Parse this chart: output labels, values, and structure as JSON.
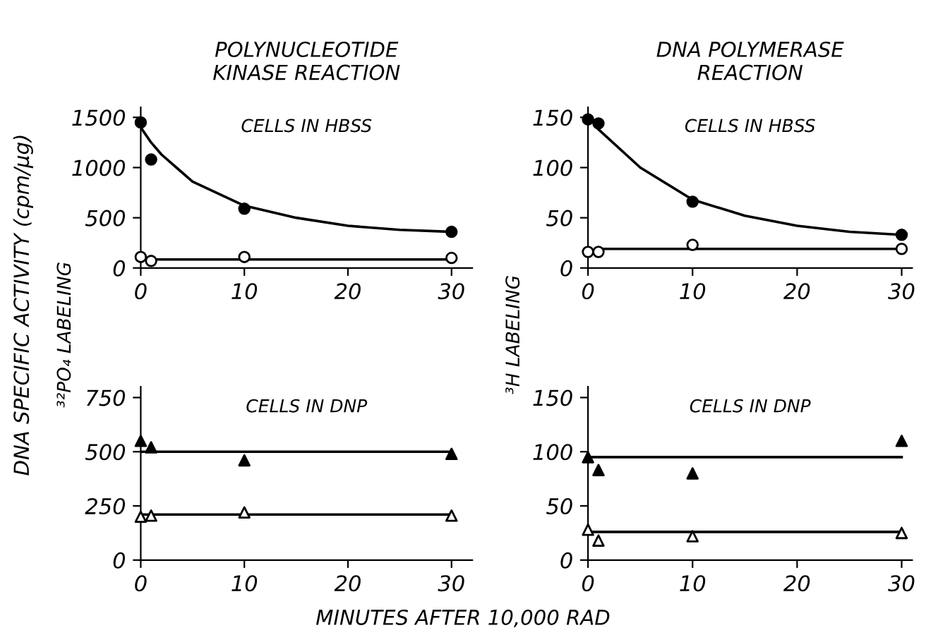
{
  "chart_data": [
    {
      "type": "scatter",
      "title": "POLYNUCLEOTIDE\nKINASE REACTION",
      "subtitle": "CELLS IN HBSS",
      "ylabel": "DNA SPECIFIC ACTIVITY (cpm/μg)",
      "x": [
        0,
        1,
        10,
        30
      ],
      "xlim": [
        0,
        32
      ],
      "xticks": [
        0,
        10,
        20,
        30
      ],
      "ylim": [
        0,
        1600
      ],
      "yticks": [
        0,
        500,
        1000,
        1500
      ],
      "grid": false,
      "legend": false,
      "series": [
        {
          "color": "#000000",
          "marker": "circle",
          "values": [
            1450,
            1080,
            590,
            360
          ]
        },
        {
          "color": "#ffffff",
          "marker": "circle",
          "values": [
            110,
            70,
            110,
            100
          ]
        },
        {
          "type": "line",
          "color": "#000000",
          "x": [
            0,
            1,
            2,
            5,
            10,
            15,
            20,
            25,
            30
          ],
          "values": [
            1400,
            1250,
            1130,
            860,
            620,
            500,
            420,
            380,
            360
          ]
        },
        {
          "type": "line",
          "color": "#000000",
          "x": [
            0,
            30
          ],
          "values": [
            85,
            85
          ]
        }
      ]
    },
    {
      "type": "scatter",
      "title": "DNA POLYMERASE\nREACTION",
      "subtitle": "CELLS IN HBSS",
      "x": [
        0,
        1,
        10,
        30
      ],
      "xlim": [
        0,
        31
      ],
      "xticks": [
        0,
        10,
        20,
        30
      ],
      "ylim": [
        0,
        160
      ],
      "yticks": [
        0,
        50,
        100,
        150
      ],
      "grid": false,
      "legend": false,
      "series": [
        {
          "color": "#000000",
          "marker": "circle",
          "values": [
            148,
            144,
            66,
            33
          ]
        },
        {
          "color": "#ffffff",
          "marker": "circle",
          "values": [
            16,
            16,
            23,
            19
          ]
        },
        {
          "type": "line",
          "color": "#000000",
          "x": [
            1,
            5,
            10,
            15,
            20,
            25,
            30
          ],
          "values": [
            138,
            100,
            68,
            52,
            42,
            36,
            33
          ]
        },
        {
          "type": "line",
          "color": "#000000",
          "x": [
            1,
            30
          ],
          "values": [
            19,
            19
          ]
        }
      ]
    },
    {
      "type": "scatter",
      "subtitle": "CELLS IN DNP",
      "ylabel": "³²PO₄ LABELING",
      "xlabel": "MINUTES AFTER 10,000 RAD",
      "x": [
        0,
        1,
        10,
        30
      ],
      "xlim": [
        0,
        32
      ],
      "xticks": [
        0,
        10,
        20,
        30
      ],
      "ylim": [
        0,
        800
      ],
      "yticks": [
        0,
        250,
        500,
        750
      ],
      "grid": false,
      "legend": false,
      "series": [
        {
          "color": "#000000",
          "marker": "triangle",
          "values": [
            550,
            520,
            460,
            490
          ]
        },
        {
          "color": "#ffffff",
          "marker": "triangle",
          "values": [
            200,
            205,
            220,
            205
          ]
        },
        {
          "type": "line",
          "color": "#000000",
          "x": [
            0,
            30
          ],
          "values": [
            500,
            500
          ]
        },
        {
          "type": "line",
          "color": "#000000",
          "x": [
            0,
            30
          ],
          "values": [
            210,
            210
          ]
        }
      ]
    },
    {
      "type": "scatter",
      "subtitle": "CELLS IN DNP",
      "ylabel": "³H LABELING",
      "x": [
        0,
        1,
        10,
        30
      ],
      "xlim": [
        0,
        31
      ],
      "xticks": [
        0,
        10,
        20,
        30
      ],
      "ylim": [
        0,
        160
      ],
      "yticks": [
        0,
        50,
        100,
        150
      ],
      "grid": false,
      "legend": false,
      "series": [
        {
          "color": "#000000",
          "marker": "triangle",
          "values": [
            95,
            83,
            80,
            110
          ]
        },
        {
          "color": "#ffffff",
          "marker": "triangle",
          "values": [
            28,
            18,
            22,
            25
          ]
        },
        {
          "type": "line",
          "color": "#000000",
          "x": [
            0,
            30
          ],
          "values": [
            95,
            95
          ]
        },
        {
          "type": "line",
          "color": "#000000",
          "x": [
            0,
            30
          ],
          "values": [
            26,
            26
          ]
        }
      ]
    }
  ]
}
